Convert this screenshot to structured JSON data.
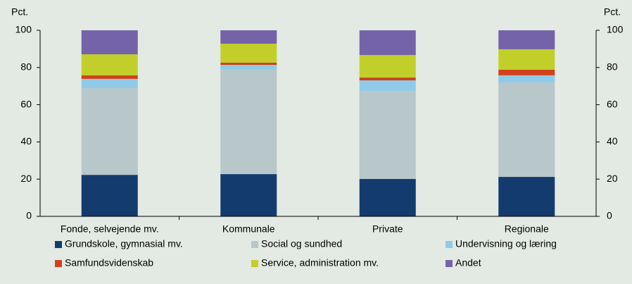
{
  "chart_data": {
    "type": "stacked_bar",
    "y_label": "Pct.",
    "y2_label": "Pct.",
    "categories": [
      "Fonde, selvejende mv.",
      "Kommunale",
      "Private",
      "Regionale"
    ],
    "series": [
      {
        "name": "Grundskole, gymnasial mv.",
        "color": "#143b6e",
        "values": [
          22.3,
          22.7,
          20.1,
          21.2
        ]
      },
      {
        "name": "Social og sundhed",
        "color": "#b8c7c9",
        "values": [
          46.6,
          56.1,
          47.3,
          50.8
        ]
      },
      {
        "name": "Undervisning og læring",
        "color": "#8fcbe8",
        "values": [
          5.0,
          2.6,
          5.7,
          3.8
        ]
      },
      {
        "name": "Samfundsvidenskab",
        "color": "#d0421b",
        "values": [
          1.9,
          1.2,
          1.5,
          3.0
        ]
      },
      {
        "name": "Service, administration mv.",
        "color": "#c2cf2a",
        "values": [
          11.3,
          10.2,
          12.1,
          11.0
        ]
      },
      {
        "name": "Andet",
        "color": "#7463a8",
        "values": [
          12.9,
          7.2,
          13.3,
          10.2
        ]
      }
    ],
    "ylim": [
      0,
      100
    ],
    "yticks": [
      0,
      20,
      40,
      60,
      80,
      100
    ],
    "y2lim": [
      0,
      100
    ],
    "y2ticks": [
      0,
      20,
      40,
      60,
      80,
      100
    ]
  }
}
